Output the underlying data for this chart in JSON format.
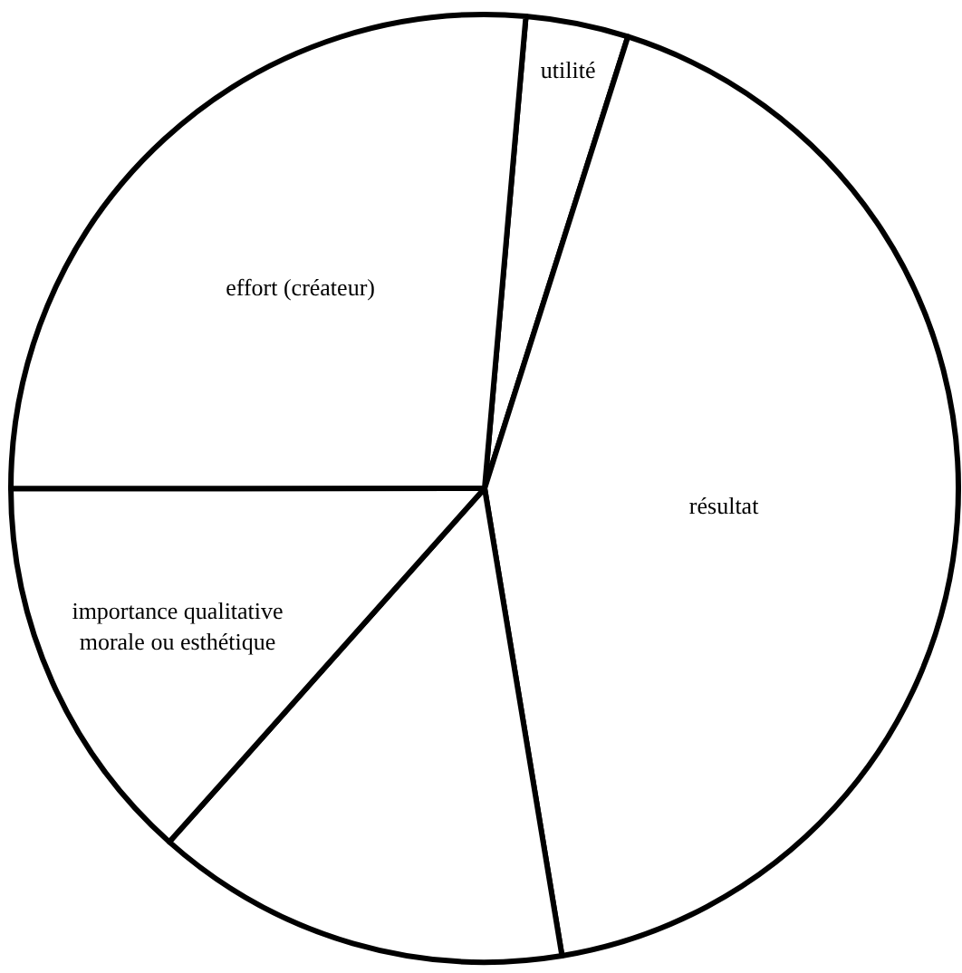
{
  "chart_data": {
    "type": "pie",
    "categories": [
      "utilité",
      "résultat",
      null,
      "importance qualitative morale ou esthétique",
      "effort (créateur)"
    ],
    "values": [
      3.5,
      42.5,
      14.2,
      13.4,
      26.4
    ],
    "colors": [
      "#ffffff",
      "#ffffff",
      "#ffffff",
      "#ffffff",
      "#ffffff"
    ],
    "legend": false
  }
}
